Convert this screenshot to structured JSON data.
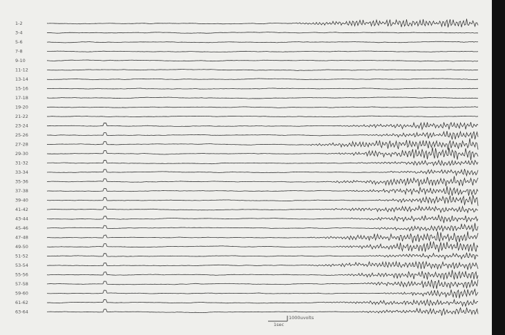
{
  "channels": [
    "1-2",
    "3-4",
    "5-6",
    "7-8",
    "9-10",
    "11-12",
    "13-14",
    "15-16",
    "17-18",
    "19-20",
    "21-22",
    "23-24",
    "25-26",
    "27-28",
    "29-30",
    "31-32",
    "33-34",
    "35-36",
    "37-38",
    "39-40",
    "41-42",
    "43-44",
    "45-46",
    "47-48",
    "49-50",
    "51-52",
    "53-54",
    "55-56",
    "57-58",
    "59-60",
    "61-62",
    "63-64"
  ],
  "scale": {
    "voltage": "1000uvolts",
    "time": "1sec"
  }
}
